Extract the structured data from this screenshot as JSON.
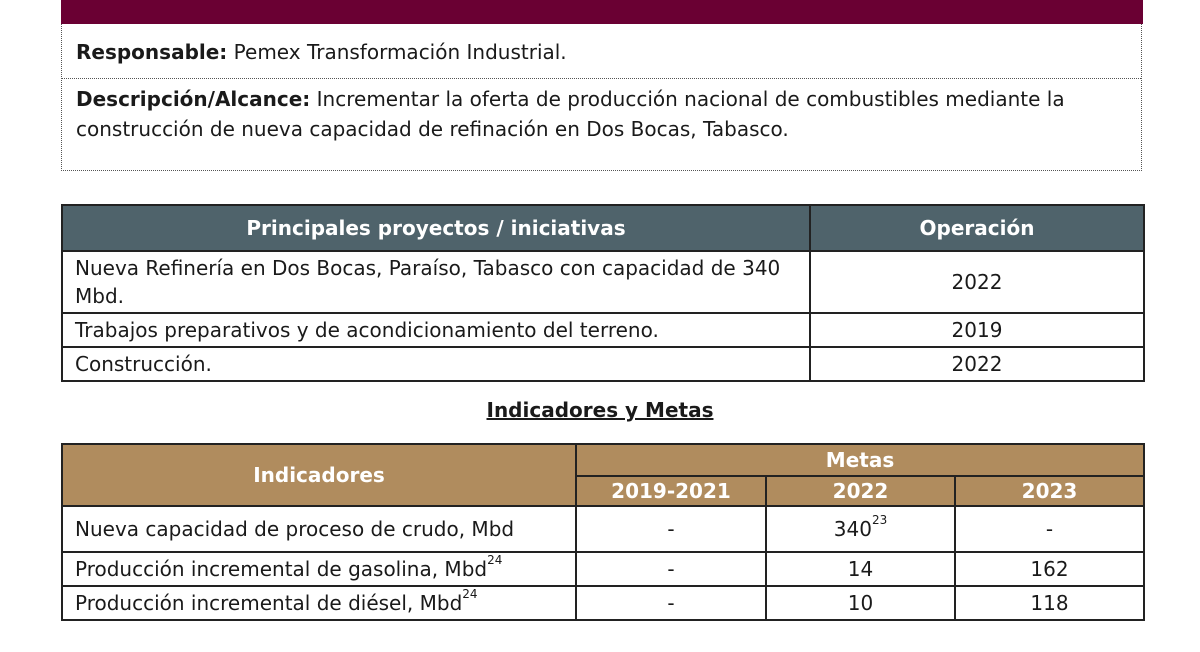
{
  "info": {
    "responsable_label": "Responsable:",
    "responsable_value": " Pemex Transformación Industrial.",
    "descripcion_label": "Descripción/Alcance:",
    "descripcion_value": " Incrementar la oferta de producción nacional de combustibles mediante la construcción de nueva capacidad de refinación en Dos Bocas, Tabasco."
  },
  "projects": {
    "headers": [
      "Principales proyectos / iniciativas",
      "Operación"
    ],
    "rows": [
      {
        "name": "Nueva Refinería en Dos Bocas, Paraíso, Tabasco con capacidad de 340 Mbd.",
        "year": "2022"
      },
      {
        "name": "Trabajos preparativos y de acondicionamiento del terreno.",
        "year": "2019"
      },
      {
        "name": "Construcción.",
        "year": "2022"
      }
    ]
  },
  "indicators_heading": "Indicadores y Metas",
  "indicators": {
    "header_indicadores": "Indicadores",
    "header_metas": "Metas",
    "years": [
      "2019-2021",
      "2022",
      "2023"
    ],
    "rows": [
      {
        "name": "Nueva capacidad de proceso de crudo, Mbd",
        "sup": "",
        "v1": "-",
        "v2": "340",
        "v2_sup": "23",
        "v3": "-"
      },
      {
        "name": "Producción incremental de gasolina, Mbd",
        "sup": "24",
        "v1": "-",
        "v2": "14",
        "v2_sup": "",
        "v3": "162"
      },
      {
        "name": "Producción incremental de diésel, Mbd",
        "sup": "24",
        "v1": "-",
        "v2": "10",
        "v2_sup": "",
        "v3": "118"
      }
    ]
  },
  "colors": {
    "banner": "#6a0033",
    "projects_header": "#4f636b",
    "indicators_header": "#b08c5e"
  }
}
